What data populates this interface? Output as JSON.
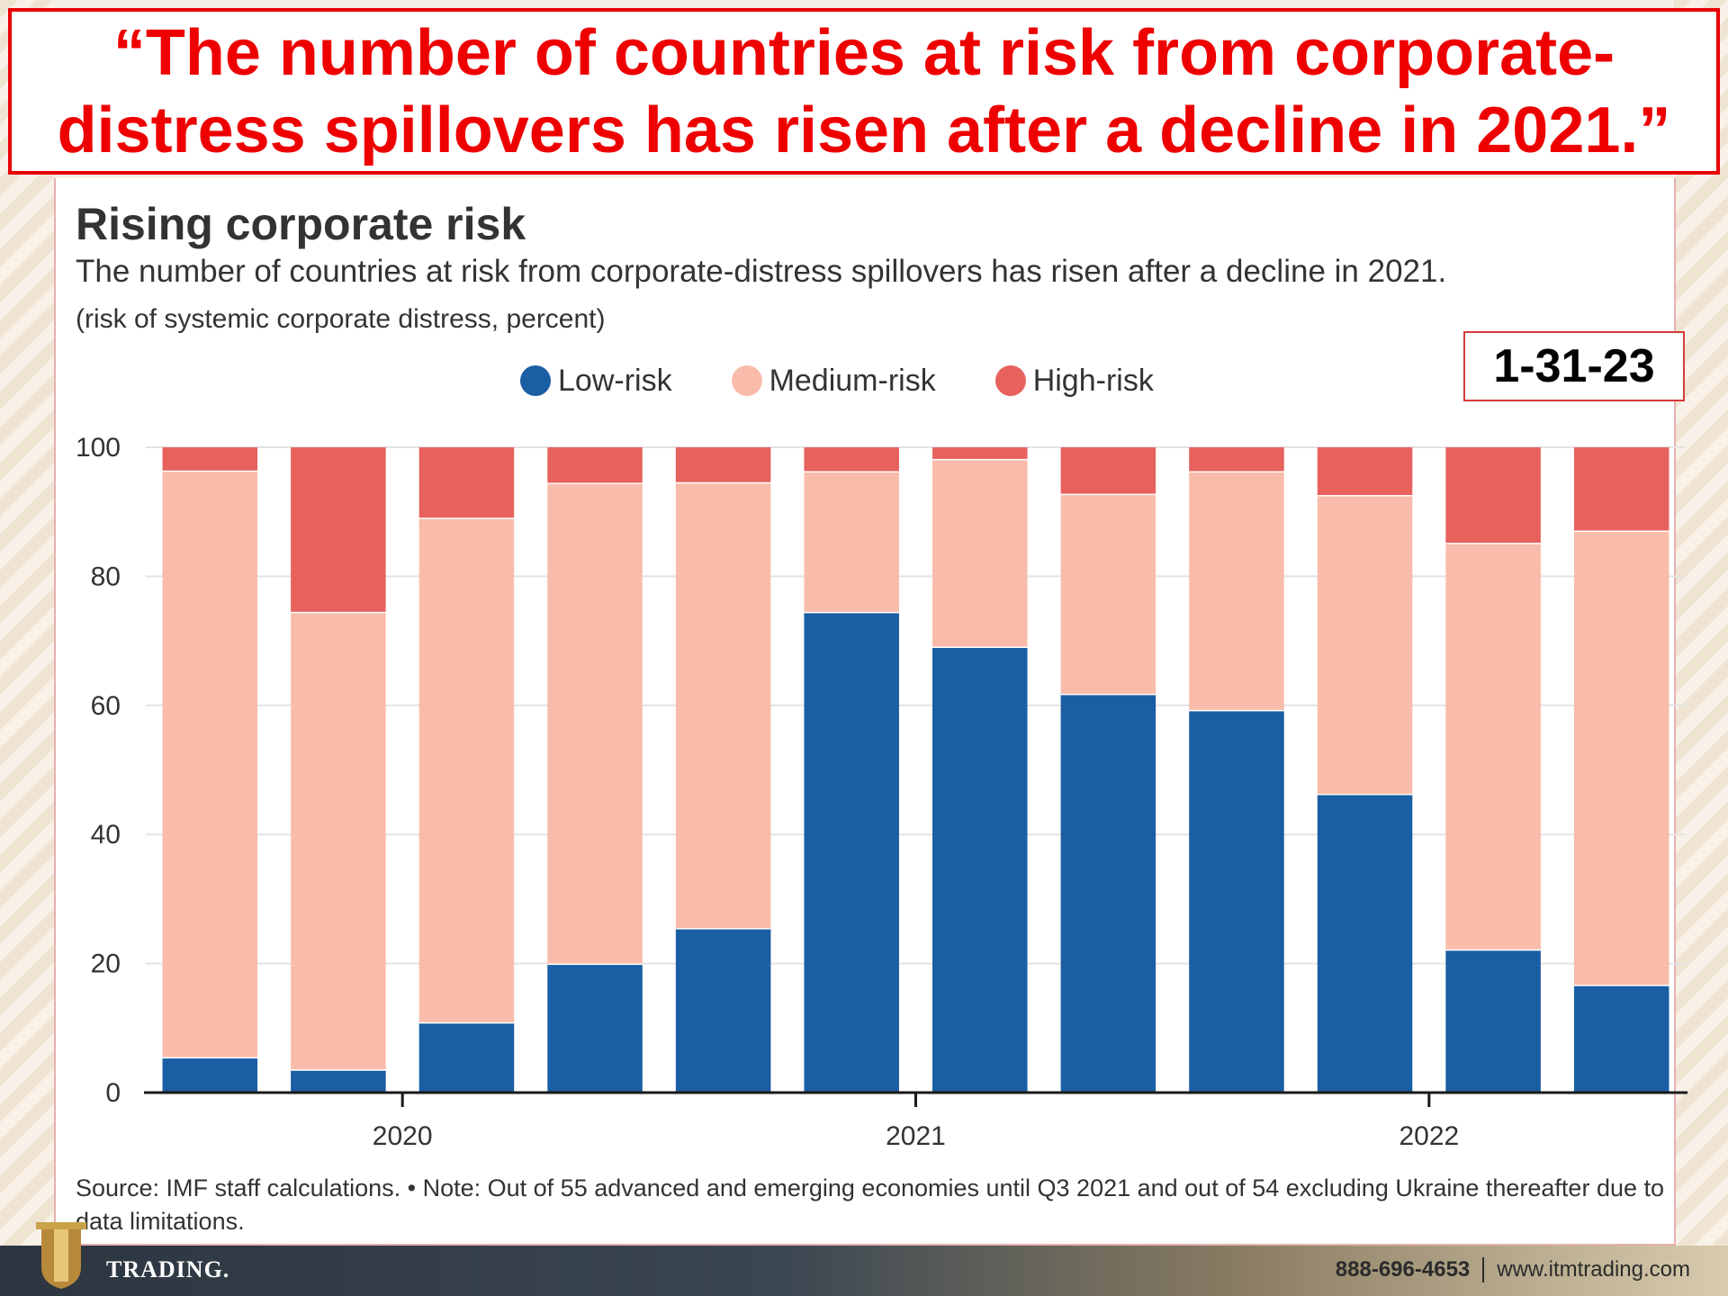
{
  "headline": "“The number of countries at risk from corporate-distress spillovers has risen after a decline in 2021.”",
  "date_badge": "1-31-23",
  "source_note": "Source: IMF staff calculations. • Note: Out of 55 advanced and emerging economies until Q3 2021 and out of 54 excluding Ukraine thereafter due to data limitations.",
  "footer": {
    "logo_text": "TRADING.",
    "phone": "888-696-4653",
    "website": "www.itmtrading.com"
  },
  "colors": {
    "headline": "#ee0000",
    "low_risk": "#1a5ea3",
    "medium_risk": "#f9bcaa",
    "high_risk": "#e8625d"
  },
  "chart_data": {
    "type": "bar",
    "stacked": true,
    "title": "Rising corporate risk",
    "subtitle": "The number of countries at risk from corporate-distress spillovers has risen after a decline in 2021.",
    "unit_label": "(risk of systemic corporate distress, percent)",
    "xlabel": "",
    "ylabel": "",
    "ylim": [
      0,
      100
    ],
    "yticks": [
      0,
      20,
      40,
      60,
      80,
      100
    ],
    "x_tick_labels": [
      {
        "label": "2020",
        "after_bar_index": 1
      },
      {
        "label": "2021",
        "after_bar_index": 5
      },
      {
        "label": "2022",
        "after_bar_index": 9
      }
    ],
    "grid": true,
    "legend_position": "top-center",
    "series": [
      {
        "name": "Low-risk",
        "color": "#1a5ea3",
        "values": [
          5.5,
          3.6,
          10.9,
          20.0,
          25.5,
          74.5,
          69.1,
          61.8,
          59.3,
          46.3,
          22.2,
          16.7
        ]
      },
      {
        "name": "Medium-risk",
        "color": "#f9bcaa",
        "values": [
          90.9,
          70.9,
          78.2,
          74.5,
          69.1,
          21.8,
          29.1,
          31.0,
          37.0,
          46.3,
          63.0,
          70.4
        ]
      },
      {
        "name": "High-risk",
        "color": "#e8625d",
        "values": [
          3.6,
          25.5,
          10.9,
          5.5,
          5.4,
          3.7,
          1.8,
          7.2,
          3.7,
          7.4,
          14.8,
          12.9
        ]
      }
    ]
  }
}
